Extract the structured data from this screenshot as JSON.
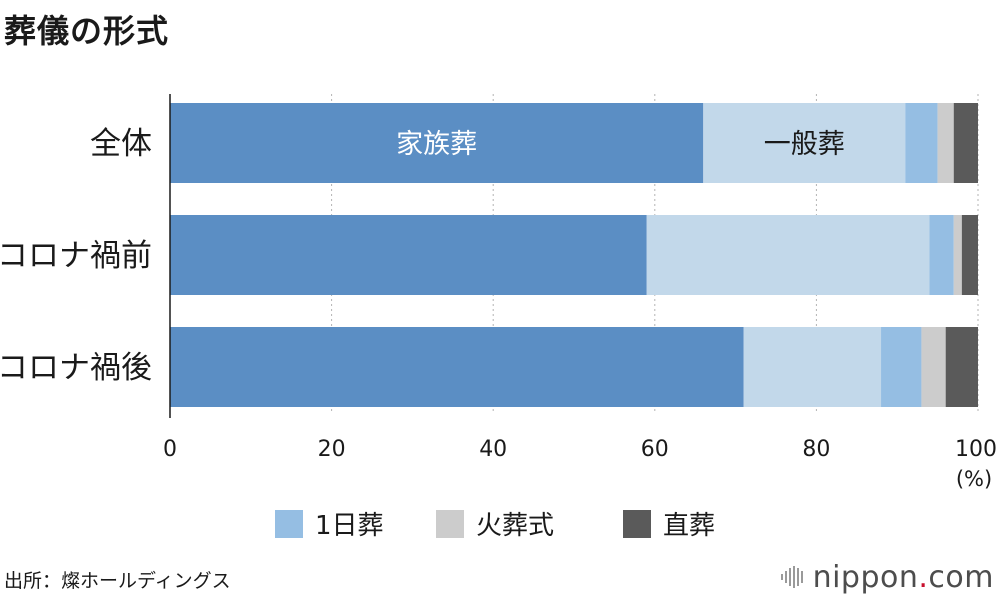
{
  "title": "葬儀の形式",
  "source": "出所：燦ホールディングス",
  "brand": {
    "name": "nippon",
    "dot": ".",
    "suffix": "com"
  },
  "chart_data": {
    "type": "bar",
    "orientation": "horizontal",
    "stacked": true,
    "categories": [
      "全体",
      "コロナ禍前",
      "コロナ禍後"
    ],
    "series": [
      {
        "name": "家族葬",
        "color": "#5b8ec4",
        "values": [
          66,
          59,
          71
        ]
      },
      {
        "name": "一般葬",
        "color": "#c2d8ea",
        "values": [
          25,
          35,
          17
        ]
      },
      {
        "name": "1日葬",
        "color": "#95bee3",
        "values": [
          4,
          3,
          5
        ]
      },
      {
        "name": "火葬式",
        "color": "#cccccc",
        "values": [
          2,
          1,
          3
        ]
      },
      {
        "name": "直葬",
        "color": "#5a5a5a",
        "values": [
          3,
          2,
          4
        ]
      }
    ],
    "in_bar_labels": [
      {
        "category": "全体",
        "series": "家族葬",
        "text": "家族葬",
        "color": "#ffffff"
      },
      {
        "category": "全体",
        "series": "一般葬",
        "text": "一般葬",
        "color": "#1a1a1a"
      }
    ],
    "legend": [
      "1日葬",
      "火葬式",
      "直葬"
    ],
    "legend_position": "bottom",
    "xlim": [
      0,
      100
    ],
    "xticks": [
      0,
      20,
      40,
      60,
      80,
      100
    ],
    "xunit": "(%)",
    "grid": true
  }
}
